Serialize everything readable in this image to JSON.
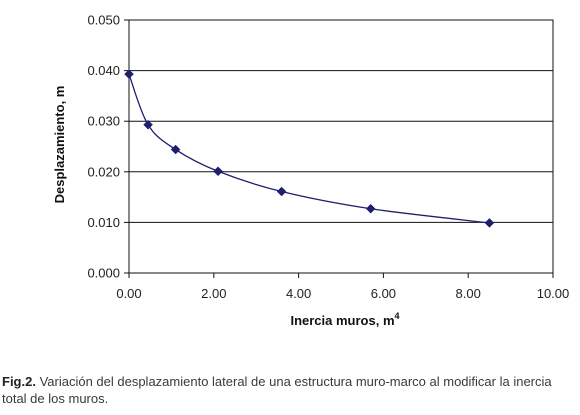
{
  "chart_data": {
    "type": "line",
    "marker": "diamond",
    "color": "#1f1f6e",
    "xlabel": "Inercia muros, m",
    "xlabel_sup": "4",
    "ylabel": "Desplazamiento, m",
    "xlim": [
      0,
      10
    ],
    "ylim": [
      0,
      0.05
    ],
    "grid": "horizontal",
    "x_ticks": [
      "0.00",
      "2.00",
      "4.00",
      "6.00",
      "8.00",
      "10.00"
    ],
    "y_ticks": [
      "0.000",
      "0.010",
      "0.020",
      "0.030",
      "0.040",
      "0.050"
    ],
    "series": [
      {
        "x": [
          0.0,
          0.45,
          1.1,
          2.1,
          3.6,
          5.7,
          8.5
        ],
        "y": [
          0.0393,
          0.0293,
          0.0244,
          0.0201,
          0.0161,
          0.0127,
          0.0099
        ]
      }
    ]
  },
  "caption": {
    "label": "Fig.2.",
    "text": " Variación del desplazamiento lateral de una estructura muro-marco al modificar la inercia total de los muros."
  }
}
